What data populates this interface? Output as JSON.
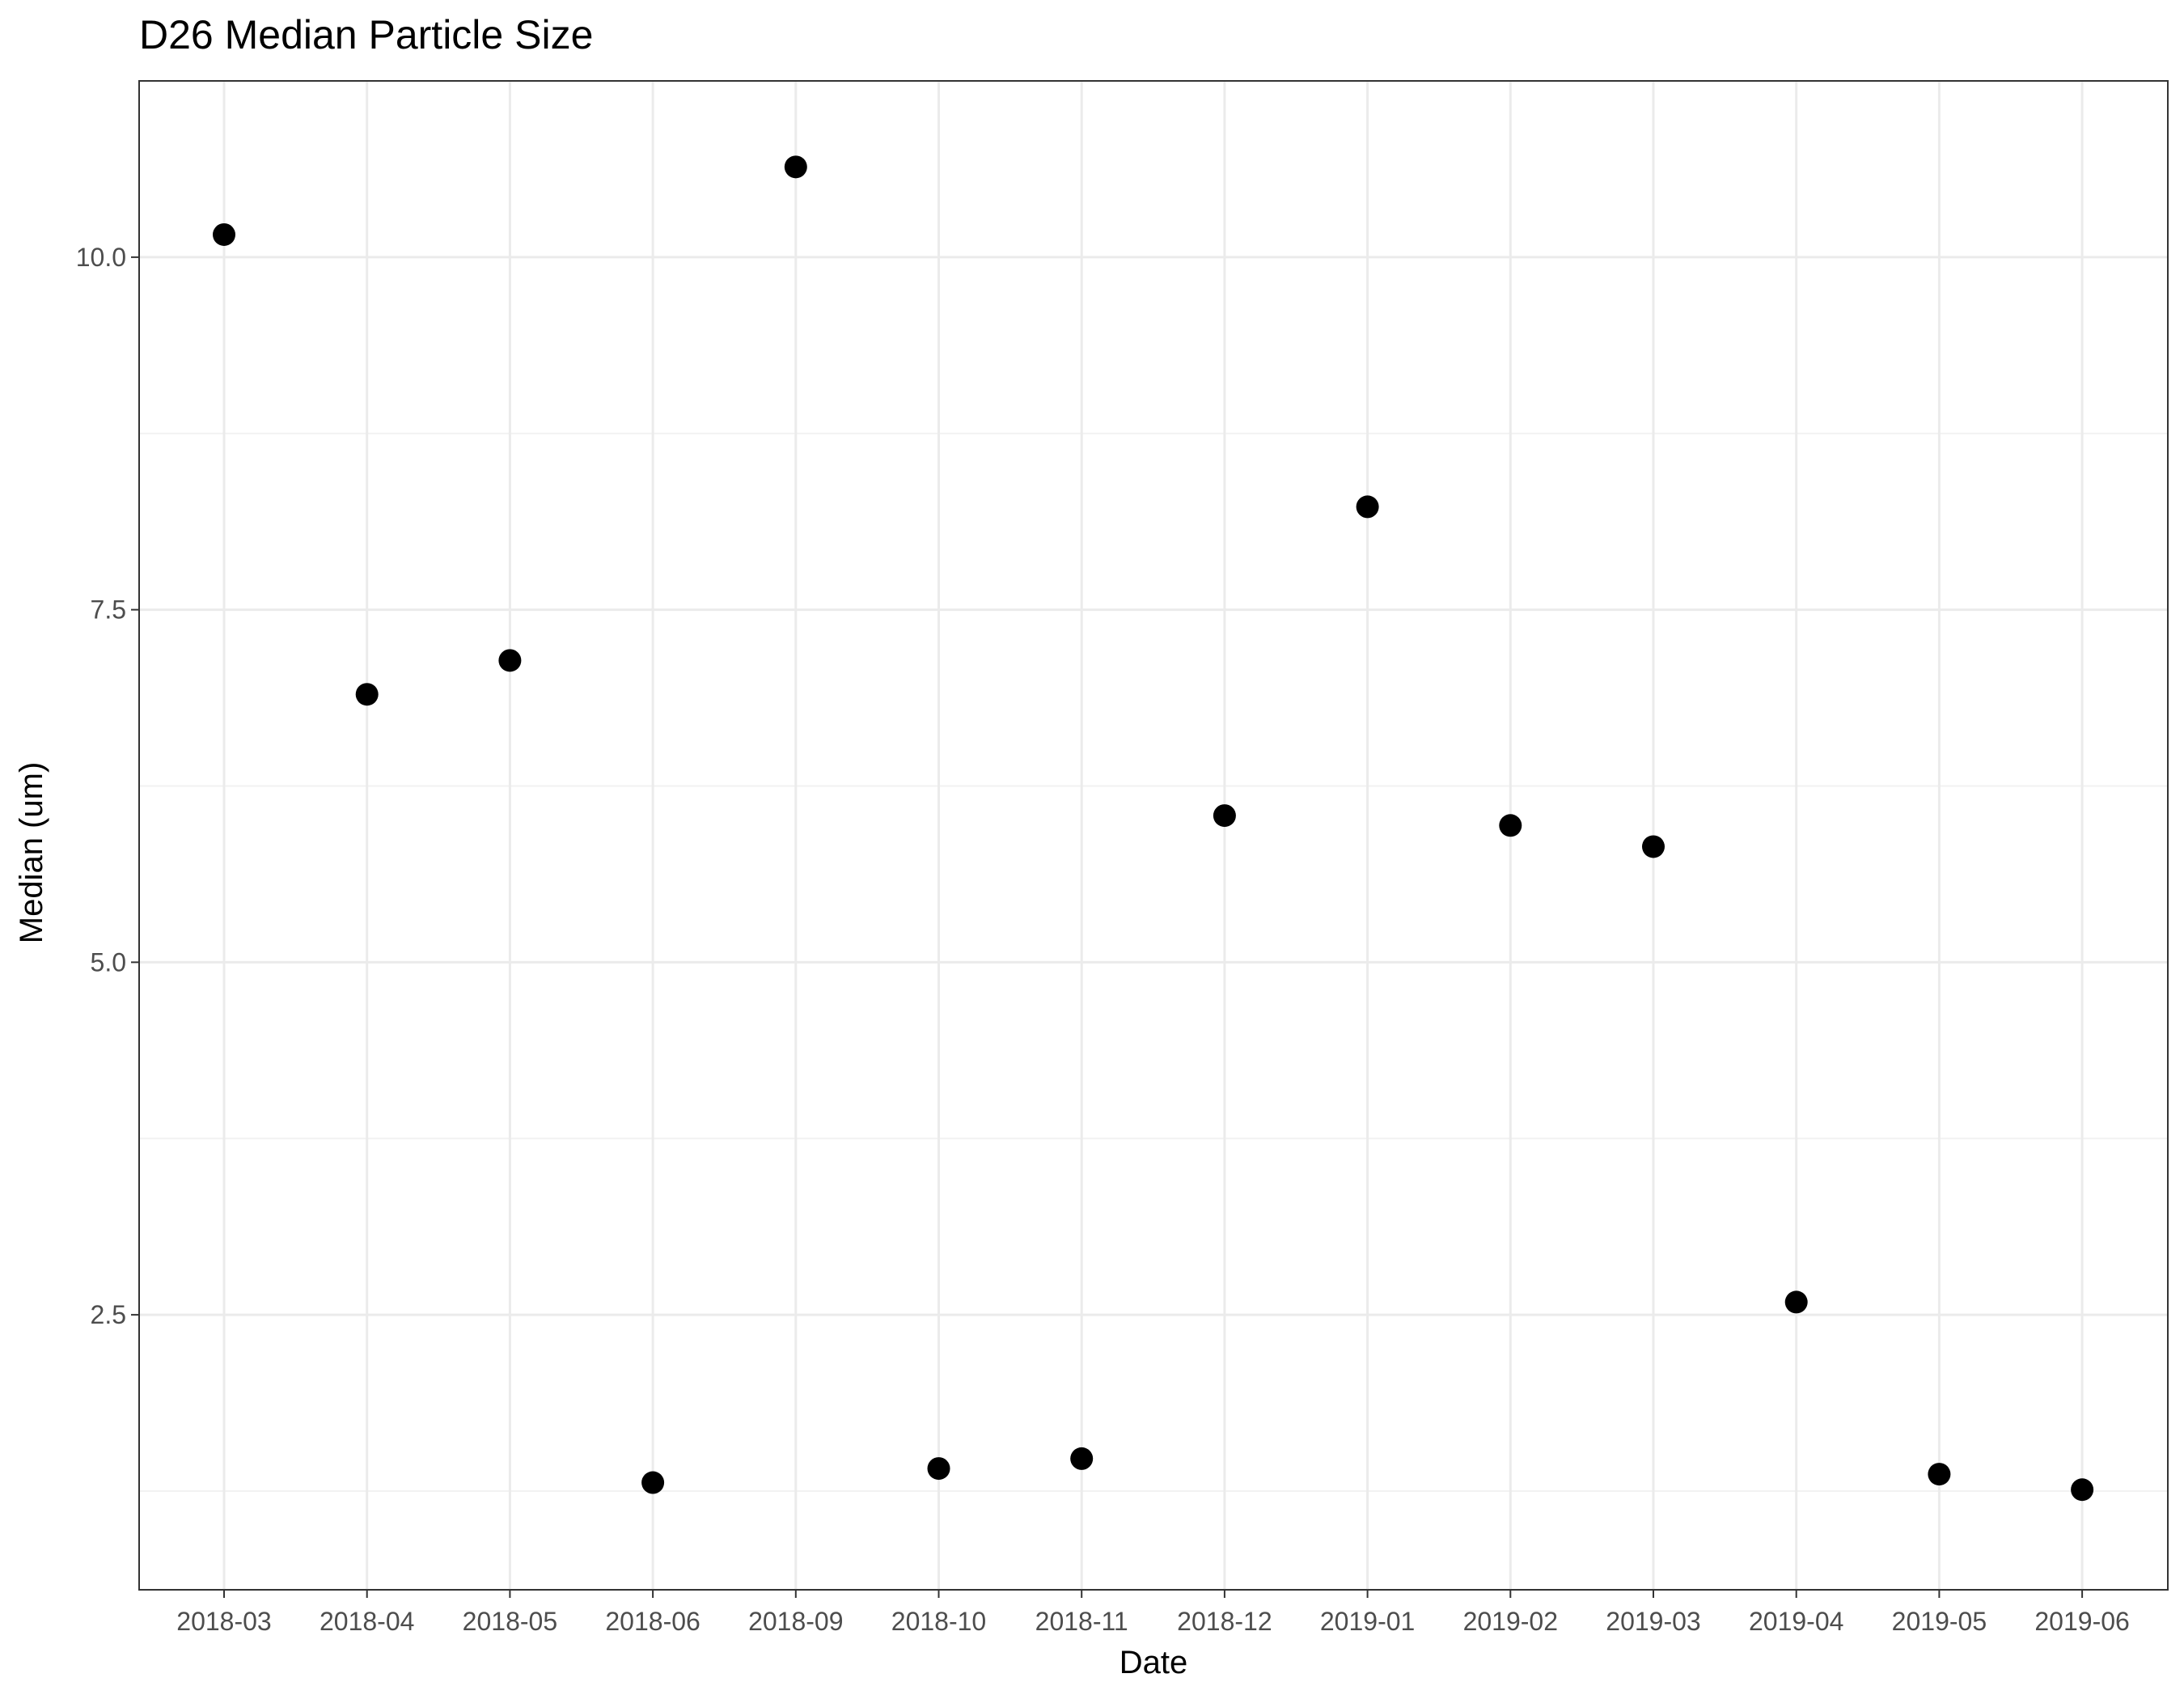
{
  "chart_data": {
    "type": "scatter",
    "title": "D26 Median Particle Size",
    "xlabel": "Date",
    "ylabel": "Median (um)",
    "x_ticks": [
      "2018-03",
      "2018-04",
      "2018-05",
      "2018-06",
      "2018-09",
      "2018-10",
      "2018-11",
      "2018-12",
      "2019-01",
      "2019-02",
      "2019-03",
      "2019-04",
      "2019-05",
      "2019-06"
    ],
    "y_ticks": [
      "2.5",
      "5.0",
      "7.5",
      "10.0"
    ],
    "ylim": [
      0.55,
      11.25
    ],
    "grid": true,
    "legend": "none",
    "point_color": "#000000",
    "series": [
      {
        "x": [
          "2018-03",
          "2018-04",
          "2018-05",
          "2018-06",
          "2018-09",
          "2018-10",
          "2018-11",
          "2018-12",
          "2019-01",
          "2019-02",
          "2019-03",
          "2019-04",
          "2019-05",
          "2019-06"
        ],
        "y": [
          10.16,
          6.9,
          7.14,
          1.31,
          10.64,
          1.41,
          1.48,
          6.04,
          8.23,
          5.97,
          5.82,
          2.59,
          1.37,
          1.26
        ]
      }
    ]
  }
}
